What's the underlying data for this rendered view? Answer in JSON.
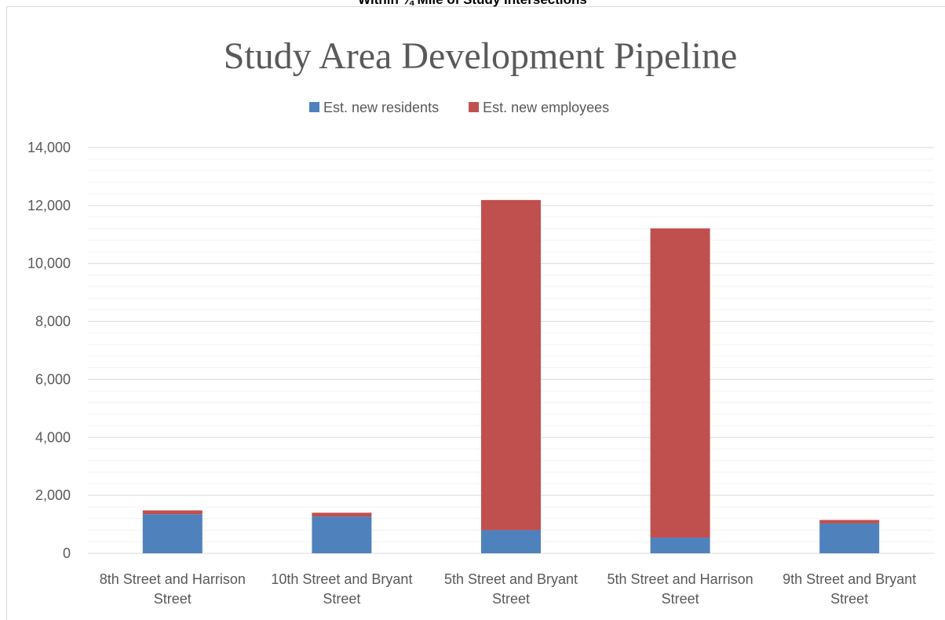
{
  "chart_data": {
    "type": "stacked_bar",
    "caption": "Within ¼ Mile of Study Intersections",
    "title": "Study Area Development Pipeline",
    "categories": [
      "8th Street and Harrison Street",
      "10th Street and Bryant Street",
      "5th Street and Bryant Street",
      "5th Street and Harrison Street",
      "9th Street and Bryant Street"
    ],
    "series": [
      {
        "name": "Est. new residents",
        "color": "#4f81bd",
        "values": [
          1350,
          1270,
          800,
          540,
          1030
        ]
      },
      {
        "name": "Est. new employees",
        "color": "#c0504d",
        "values": [
          130,
          130,
          11390,
          10670,
          120
        ]
      }
    ],
    "ylim": [
      0,
      14000
    ],
    "yticks": [
      0,
      {
        "value": 2000,
        "label": "2,000"
      },
      {
        "value": 4000,
        "label": "4,000"
      },
      {
        "value": 6000,
        "label": "6,000"
      },
      {
        "value": 8000,
        "label": "8,000"
      },
      {
        "value": 10000,
        "label": "10,000"
      },
      {
        "value": 12000,
        "label": "12,000"
      },
      {
        "value": 14000,
        "label": "14,000"
      }
    ],
    "minor_yticks": [
      400,
      800,
      1200,
      1600,
      2400,
      2800,
      3200,
      3600,
      4400,
      4800,
      5200,
      5600,
      6400,
      6800,
      7200,
      7600,
      8400,
      8800,
      9200,
      9600,
      10400,
      10800,
      11200,
      11600,
      12400,
      12800,
      13200,
      13600
    ],
    "grid": true,
    "legend": "top"
  }
}
